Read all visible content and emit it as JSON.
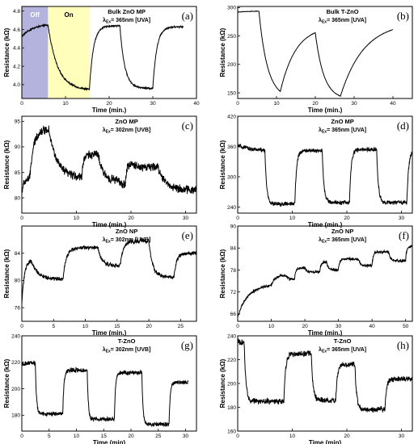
{
  "figure": {
    "background": "#ffffff",
    "line_color": "#000000"
  },
  "chart_data": [
    {
      "id": "a",
      "type": "line",
      "letter": "(a)",
      "title": "Bulk ZnO MP",
      "excitation": "= 365nm [UVA]",
      "xlabel": "Time (min.)",
      "ylabel": "Resistance (kΩ)",
      "xlim": [
        0,
        40
      ],
      "ylim": [
        3.85,
        4.85
      ],
      "xticks": [
        0,
        10,
        20,
        30,
        40
      ],
      "yticks": [
        4.0,
        4.2,
        4.4,
        4.6,
        4.8
      ],
      "xtick_labels": [
        "0",
        "10",
        "20",
        "30",
        "40"
      ],
      "ytick_labels": [
        "4.0",
        "4.2",
        "4.4",
        "4.6",
        "4.8"
      ],
      "regions": [
        {
          "label": "Off",
          "x": [
            0,
            6
          ],
          "color": "#b3b3dd",
          "text_color": "#ffffff"
        },
        {
          "label": "On",
          "x": [
            6,
            15.5
          ],
          "color": "#ffffbb",
          "text_color": "#000000"
        }
      ],
      "trace": {
        "y0": 4.52,
        "noise": 0.008,
        "segments": [
          {
            "end": 6,
            "target": 4.66,
            "tau": 2.5
          },
          {
            "end": 15.5,
            "target": 3.94,
            "tau": 2.2
          },
          {
            "end": 22.5,
            "target": 4.64,
            "tau": 0.9
          },
          {
            "end": 30,
            "target": 3.96,
            "tau": 1.1
          },
          {
            "end": 37,
            "target": 4.63,
            "tau": 0.9
          }
        ]
      }
    },
    {
      "id": "b",
      "type": "line",
      "letter": "(b)",
      "title": "Bulk T-ZnO",
      "excitation": "= 365nm [UVA]",
      "xlabel": "Time (min.)",
      "ylabel": "Resistance (kΩ)",
      "xlim": [
        0,
        45
      ],
      "ylim": [
        140,
        302
      ],
      "xticks": [
        0,
        10,
        20,
        30,
        40
      ],
      "yticks": [
        150,
        200,
        250,
        300
      ],
      "xtick_labels": [
        "0",
        "10",
        "20",
        "30",
        "40"
      ],
      "ytick_labels": [
        "150",
        "200",
        "250",
        "300"
      ],
      "regions": [],
      "trace": {
        "y0": 292,
        "noise": 0.3,
        "segments": [
          {
            "end": 5.5,
            "target": 294,
            "tau": 3.0
          },
          {
            "end": 11,
            "target": 140,
            "tau": 2.2
          },
          {
            "end": 20,
            "target": 268,
            "tau": 4.0
          },
          {
            "end": 26.5,
            "target": 138,
            "tau": 2.2
          },
          {
            "end": 40,
            "target": 275,
            "tau": 6.0
          }
        ]
      }
    },
    {
      "id": "c",
      "type": "line",
      "letter": "(c)",
      "title": "ZnO MP",
      "excitation": "= 302nm [UVB]",
      "xlabel": "Time (min.)",
      "ylabel": "Resistance (kΩ)",
      "xlim": [
        0,
        32
      ],
      "ylim": [
        77,
        96
      ],
      "xticks": [
        0,
        10,
        20,
        30
      ],
      "yticks": [
        80,
        85,
        90,
        95
      ],
      "xtick_labels": [
        "0",
        "10",
        "20",
        "30"
      ],
      "ytick_labels": [
        "80",
        "85",
        "90",
        "95"
      ],
      "regions": [],
      "trace": {
        "y0": 81,
        "noise": 0.7,
        "segments": [
          {
            "end": 1.5,
            "target": 84,
            "tau": 0.5
          },
          {
            "end": 5,
            "target": 93.5,
            "tau": 0.7
          },
          {
            "end": 11,
            "target": 84,
            "tau": 1.4
          },
          {
            "end": 14,
            "target": 88.5,
            "tau": 0.3
          },
          {
            "end": 17.5,
            "target": 83.5,
            "tau": 0.8
          },
          {
            "end": 19,
            "target": 82.5,
            "tau": 0.5
          },
          {
            "end": 20.5,
            "target": 86.5,
            "tau": 0.2
          },
          {
            "end": 25,
            "target": 86,
            "tau": 0.8
          },
          {
            "end": 32,
            "target": 81.5,
            "tau": 1.4
          }
        ]
      }
    },
    {
      "id": "d",
      "type": "line",
      "letter": "(d)",
      "title": "ZnO MP",
      "excitation": "= 365nm [UVA]",
      "xlabel": "Time (min.)",
      "ylabel": "Resistance (kΩ)",
      "xlim": [
        0,
        32
      ],
      "ylim": [
        228,
        420
      ],
      "xticks": [
        0,
        10,
        20,
        30
      ],
      "yticks": [
        240,
        300,
        360,
        420
      ],
      "xtick_labels": [
        "0",
        "10",
        "20",
        "30"
      ],
      "ytick_labels": [
        "240",
        "300",
        "360",
        "420"
      ],
      "regions": [],
      "trace": {
        "y0": 362,
        "noise": 3.5,
        "segments": [
          {
            "end": 5,
            "target": 350,
            "tau": 3.0
          },
          {
            "end": 10.5,
            "target": 246,
            "tau": 0.3
          },
          {
            "end": 15.5,
            "target": 352,
            "tau": 0.3
          },
          {
            "end": 20.5,
            "target": 249,
            "tau": 0.3
          },
          {
            "end": 25.5,
            "target": 354,
            "tau": 0.3
          },
          {
            "end": 31,
            "target": 249,
            "tau": 0.3
          },
          {
            "end": 32,
            "target": 350,
            "tau": 0.3
          }
        ]
      }
    },
    {
      "id": "e",
      "type": "line",
      "letter": "(e)",
      "title": "ZnO NP",
      "excitation": "= 302nm [UVB]",
      "xlabel": "Time (min.)",
      "ylabel": "Resistance (kΩ)",
      "xlim": [
        0,
        27.5
      ],
      "ylim": [
        74,
        88
      ],
      "xticks": [
        0,
        5,
        10,
        15,
        20,
        25
      ],
      "yticks": [
        76,
        80,
        84
      ],
      "xtick_labels": [
        "0",
        "5",
        "10",
        "15",
        "20",
        "25"
      ],
      "ytick_labels": [
        "76",
        "80",
        "84"
      ],
      "regions": [],
      "trace": {
        "y0": 76,
        "noise": 0.25,
        "segments": [
          {
            "end": 1.5,
            "target": 83,
            "tau": 0.4
          },
          {
            "end": 6.5,
            "target": 80.2,
            "tau": 1.0
          },
          {
            "end": 12,
            "target": 84.8,
            "tau": 0.5
          },
          {
            "end": 15.5,
            "target": 82.2,
            "tau": 0.6
          },
          {
            "end": 20,
            "target": 85.8,
            "tau": 0.5
          },
          {
            "end": 24,
            "target": 80.5,
            "tau": 0.6
          },
          {
            "end": 27.5,
            "target": 84,
            "tau": 0.4
          }
        ]
      }
    },
    {
      "id": "f",
      "type": "line",
      "letter": "(f)",
      "title": "ZnO NP",
      "excitation": "= 365nm [UVA]",
      "xlabel": "Time (min.)",
      "ylabel": "Resistance (kΩ)",
      "xlim": [
        0,
        52
      ],
      "ylim": [
        64,
        90
      ],
      "xticks": [
        0,
        10,
        20,
        30,
        40,
        50
      ],
      "yticks": [
        66,
        72,
        78,
        84,
        90
      ],
      "xtick_labels": [
        "0",
        "10",
        "20",
        "30",
        "40",
        "50"
      ],
      "ytick_labels": [
        "66",
        "72",
        "78",
        "84",
        "90"
      ],
      "regions": [],
      "trace": {
        "y0": 65,
        "noise": 0.3,
        "segments": [
          {
            "end": 10,
            "target": 74,
            "tau": 3.0
          },
          {
            "end": 14.5,
            "target": 76.5,
            "tau": 1.0
          },
          {
            "end": 17,
            "target": 75.5,
            "tau": 0.5
          },
          {
            "end": 20,
            "target": 78.5,
            "tau": 0.3
          },
          {
            "end": 24.5,
            "target": 77.5,
            "tau": 0.5
          },
          {
            "end": 26.5,
            "target": 80.2,
            "tau": 0.3
          },
          {
            "end": 30,
            "target": 78,
            "tau": 0.5
          },
          {
            "end": 36,
            "target": 81,
            "tau": 0.4
          },
          {
            "end": 40,
            "target": 79.2,
            "tau": 0.5
          },
          {
            "end": 45,
            "target": 83,
            "tau": 0.4
          },
          {
            "end": 50,
            "target": 80.5,
            "tau": 0.5
          },
          {
            "end": 52,
            "target": 84.5,
            "tau": 0.3
          }
        ]
      }
    },
    {
      "id": "g",
      "type": "line",
      "letter": "(g)",
      "title": "T-ZnO",
      "excitation": "= 302nm [UVB]",
      "xlabel": "Time (min)",
      "ylabel": "Resistance (kΩ)",
      "xlim": [
        0,
        32
      ],
      "ylim": [
        168,
        240
      ],
      "xticks": [
        0,
        5,
        10,
        15,
        20,
        25,
        30
      ],
      "yticks": [
        180,
        200,
        220,
        240
      ],
      "xtick_labels": [
        "0",
        "5",
        "10",
        "15",
        "20",
        "25",
        "30"
      ],
      "ytick_labels": [
        "180",
        "200",
        "220",
        "240"
      ],
      "regions": [],
      "trace": {
        "y0": 218,
        "noise": 1.4,
        "segments": [
          {
            "end": 2.5,
            "target": 220,
            "tau": 1.0
          },
          {
            "end": 7.5,
            "target": 181,
            "tau": 0.2
          },
          {
            "end": 12,
            "target": 214,
            "tau": 0.2
          },
          {
            "end": 17,
            "target": 177,
            "tau": 0.2
          },
          {
            "end": 22,
            "target": 212,
            "tau": 0.2
          },
          {
            "end": 27,
            "target": 173,
            "tau": 0.2
          },
          {
            "end": 30.5,
            "target": 205,
            "tau": 0.2
          }
        ]
      }
    },
    {
      "id": "h",
      "type": "line",
      "letter": "(h)",
      "title": "T-ZnO",
      "excitation": "= 365nm [UVA]",
      "xlabel": "Time (min)",
      "ylabel": "Resistance (kΩ)",
      "xlim": [
        0,
        32
      ],
      "ylim": [
        160,
        240
      ],
      "xticks": [
        0,
        10,
        20,
        30
      ],
      "yticks": [
        160,
        180,
        200,
        220,
        240
      ],
      "xtick_labels": [
        "0",
        "10",
        "20",
        "30"
      ],
      "ytick_labels": [
        "160",
        "180",
        "200",
        "220",
        "240"
      ],
      "regions": [],
      "trace": {
        "y0": 237,
        "noise": 2.0,
        "segments": [
          {
            "end": 1.2,
            "target": 234,
            "tau": 0.3
          },
          {
            "end": 8.5,
            "target": 185,
            "tau": 0.3
          },
          {
            "end": 13.5,
            "target": 225,
            "tau": 0.3
          },
          {
            "end": 18,
            "target": 186,
            "tau": 0.3
          },
          {
            "end": 21.5,
            "target": 216,
            "tau": 0.3
          },
          {
            "end": 27,
            "target": 178,
            "tau": 0.3
          },
          {
            "end": 32,
            "target": 204,
            "tau": 0.3
          }
        ]
      }
    }
  ]
}
